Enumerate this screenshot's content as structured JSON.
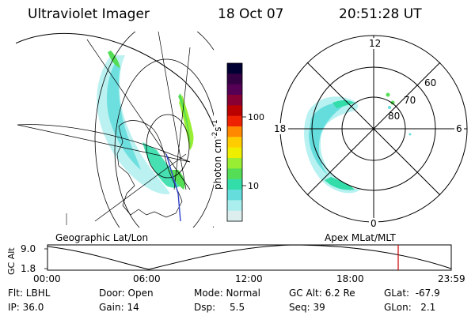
{
  "header": {
    "title": "Ultraviolet Imager",
    "date": "18 Oct 07",
    "time": "20:51:28 UT"
  },
  "colorbar": {
    "label_main": "photon cm",
    "label_exp1": "-2",
    "label_s": "s",
    "label_exp2": "-1",
    "ticks": [
      "100",
      "10"
    ],
    "colors": [
      "#000033",
      "#330044",
      "#550055",
      "#880033",
      "#bb0000",
      "#ee2200",
      "#ff8800",
      "#ffcc00",
      "#eeee00",
      "#99ee33",
      "#55dd55",
      "#33ddaa",
      "#66dddd",
      "#aaeeee",
      "#ddeeee"
    ]
  },
  "left_panel": {
    "caption": "Geographic Lat/Lon"
  },
  "right_panel": {
    "caption": "Apex MLat/MLT",
    "mlt_labels": {
      "top": "12",
      "left": "18",
      "right": "6",
      "bottom": "0"
    },
    "lat_labels": [
      "60",
      "70",
      "80"
    ]
  },
  "timeline": {
    "ylabel": "GC Alt",
    "y_ticks": [
      "9.0",
      "1.8"
    ],
    "x_ticks": [
      "00:00",
      "06:00",
      "12:00",
      "18:00",
      "23:59"
    ]
  },
  "info": {
    "row1": {
      "filter": "Flt: LBHL",
      "door": "Door: Open",
      "mode": "Mode: Normal",
      "gcalt": "GC Alt: 6.2 Re",
      "glat": "GLat:  -67.9"
    },
    "row2": {
      "ip": "IP: 36.0",
      "gain": "Gain: 14",
      "dsp_label": "Dsp:",
      "dsp_value": "5.5",
      "seq": "Seq: 39",
      "glon": "GLon:   2.1"
    }
  }
}
